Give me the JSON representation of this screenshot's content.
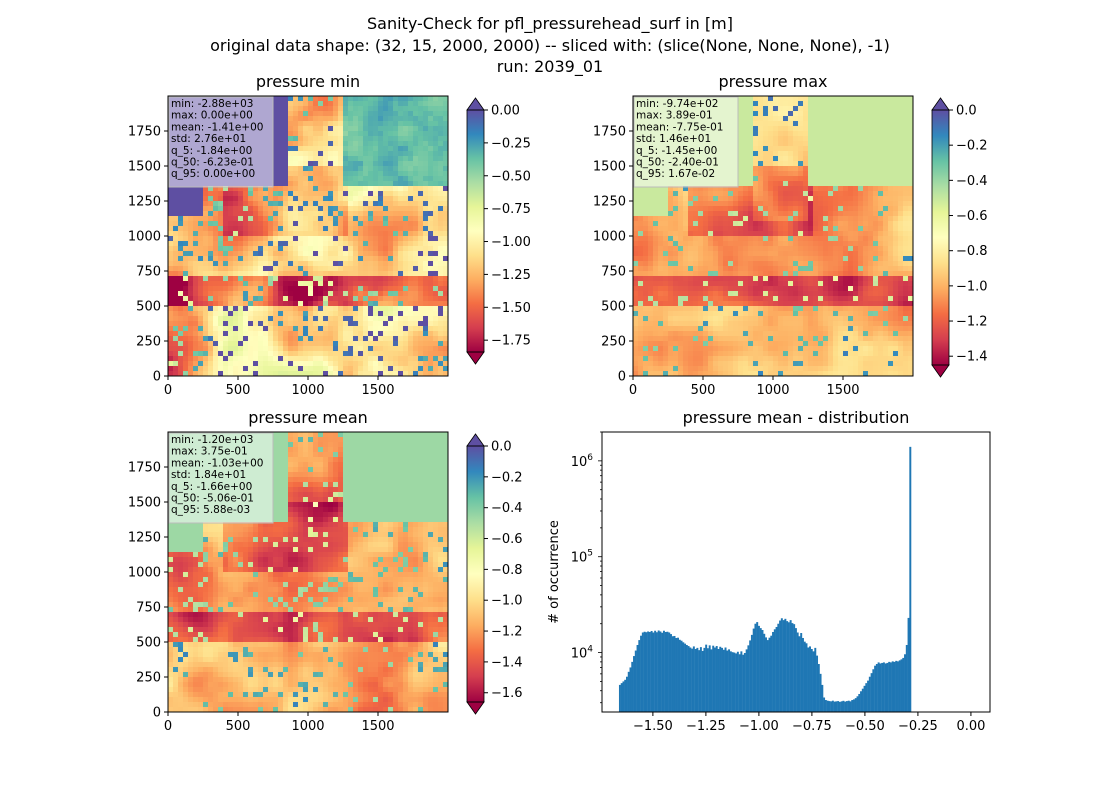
{
  "figure": {
    "suptitle_lines": [
      "Sanity-Check for pfl_pressurehead_surf in [m]",
      "original data shape: (32, 15, 2000, 2000) -- sliced with: (slice(None, None, None), -1)",
      "run: 2039_01"
    ]
  },
  "chart_data": [
    {
      "type": "heatmap",
      "title": "pressure min",
      "x_ticks": [
        0,
        500,
        1000,
        1500
      ],
      "y_ticks": [
        0,
        250,
        500,
        750,
        1000,
        1250,
        1500,
        1750
      ],
      "xlim": [
        0,
        2000
      ],
      "ylim": [
        0,
        2000
      ],
      "colormap": "Spectral",
      "colorbar": {
        "vmin": -1.84,
        "vmax": 0.0,
        "ticks": [
          "0.00",
          "-0.25",
          "-0.50",
          "-0.75",
          "-1.00",
          "-1.25",
          "-1.50",
          "-1.75"
        ],
        "extend": "both"
      },
      "stats": [
        "min: -2.88e+03",
        "max: 0.00e+00",
        "mean: -1.41e+00",
        "std: 2.76e+01",
        "q_5: -1.84e+00",
        "q_50: -6.23e-01",
        "q_95: 0.00e+00"
      ]
    },
    {
      "type": "heatmap",
      "title": "pressure max",
      "x_ticks": [
        0,
        500,
        1000,
        1500
      ],
      "y_ticks": [
        0,
        250,
        500,
        750,
        1000,
        1250,
        1500,
        1750
      ],
      "xlim": [
        0,
        2000
      ],
      "ylim": [
        0,
        2000
      ],
      "colormap": "Spectral",
      "colorbar": {
        "vmin": -1.45,
        "vmax": 0.0,
        "ticks": [
          "0.0",
          "-0.2",
          "-0.4",
          "-0.6",
          "-0.8",
          "-1.0",
          "-1.2",
          "-1.4"
        ],
        "extend": "both"
      },
      "stats": [
        "min: -9.74e+02",
        "max: 3.89e-01",
        "mean: -7.75e-01",
        "std: 1.46e+01",
        "q_5: -1.45e+00",
        "q_50: -2.40e-01",
        "q_95: 1.67e-02"
      ]
    },
    {
      "type": "heatmap",
      "title": "pressure mean",
      "x_ticks": [
        0,
        500,
        1000,
        1500
      ],
      "y_ticks": [
        0,
        250,
        500,
        750,
        1000,
        1250,
        1500,
        1750
      ],
      "xlim": [
        0,
        2000
      ],
      "ylim": [
        0,
        2000
      ],
      "colormap": "Spectral",
      "colorbar": {
        "vmin": -1.66,
        "vmax": 0.0,
        "ticks": [
          "0.0",
          "-0.2",
          "-0.4",
          "-0.6",
          "-0.8",
          "-1.0",
          "-1.2",
          "-1.4",
          "-1.6"
        ],
        "extend": "both"
      },
      "stats": [
        "min: -1.20e+03",
        "max: 3.75e-01",
        "mean: -1.03e+00",
        "std: 1.84e+01",
        "q_5: -1.66e+00",
        "q_50: -5.06e-01",
        "q_95: 5.88e-03"
      ]
    },
    {
      "type": "bar",
      "title": "pressure mean - distribution",
      "ylabel": "# of occurrence",
      "xlabel": "",
      "y_scale": "log",
      "x_ticks": [
        "−1.50",
        "−1.25",
        "−1.00",
        "−0.75",
        "−0.50",
        "−0.25",
        "0.00"
      ],
      "y_tick_labels": [
        {
          "base": "10",
          "exp": "4"
        },
        {
          "base": "10",
          "exp": "5"
        },
        {
          "base": "10",
          "exp": "6"
        }
      ],
      "xlim": [
        -1.74,
        0.09
      ],
      "ylim": [
        2400,
        2000000
      ],
      "color": "#1f77b4",
      "bin_edges_start": -1.66,
      "bin_width": 0.0083,
      "counts": [
        4600,
        4800,
        5000,
        5200,
        5600,
        6300,
        7000,
        8000,
        9200,
        10500,
        12000,
        13500,
        15000,
        16200,
        16500,
        16300,
        16600,
        16400,
        16800,
        16200,
        16900,
        16300,
        17000,
        16600,
        16100,
        16900,
        16400,
        16500,
        16200,
        15600,
        14800,
        14900,
        14200,
        14300,
        13600,
        13300,
        12800,
        12400,
        12000,
        11700,
        11300,
        11000,
        11600,
        10900,
        11200,
        10600,
        11400,
        10400,
        11200,
        12100,
        11100,
        11900,
        10800,
        11800,
        11300,
        11700,
        10900,
        11500,
        11200,
        10700,
        11300,
        10500,
        10800,
        10300,
        10100,
        10000,
        9800,
        10200,
        9600,
        10300,
        9500,
        9900,
        10800,
        11900,
        13400,
        15300,
        17800,
        20000,
        20800,
        19000,
        18000,
        17200,
        15700,
        14400,
        13500,
        14300,
        15000,
        16400,
        17500,
        18500,
        20000,
        21600,
        22800,
        21800,
        22500,
        21300,
        20700,
        21800,
        20300,
        19800,
        18000,
        16200,
        14800,
        16000,
        14200,
        13000,
        12500,
        11300,
        11600,
        10900,
        10300,
        11200,
        9300,
        7600,
        6000,
        4600,
        3400,
        3200,
        3150,
        3120,
        3100,
        3150,
        3080,
        3100,
        3120,
        3060,
        3100,
        3140,
        3080,
        3120,
        3150,
        3100,
        3200,
        3250,
        3350,
        3500,
        3700,
        3950,
        4200,
        4500,
        4800,
        5100,
        5600,
        6100,
        6700,
        7300,
        7600,
        7900,
        7700,
        7800,
        7900,
        7700,
        7800,
        8000,
        7900,
        8100,
        8000,
        8200,
        8100,
        8300,
        8500,
        8800,
        9600,
        12000,
        23000,
        1400000
      ]
    }
  ]
}
